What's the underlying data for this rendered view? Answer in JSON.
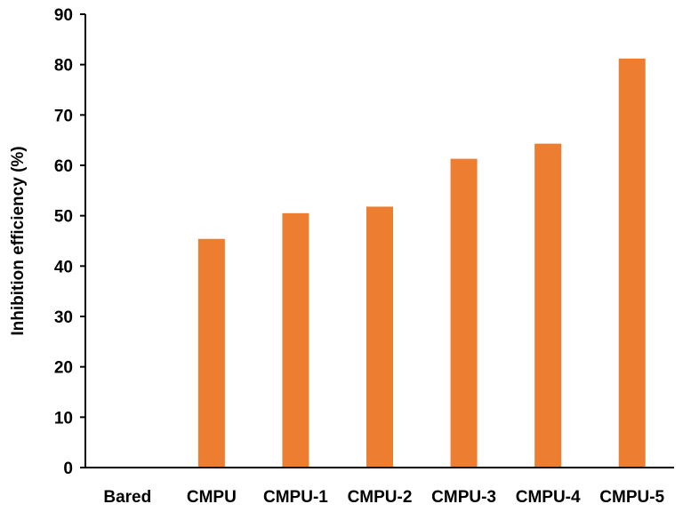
{
  "chart_data": {
    "type": "bar",
    "title": "",
    "xlabel": "",
    "ylabel": "Inhibition efficiency (%)",
    "categories": [
      "Bared",
      "CMPU",
      "CMPU-1",
      "CMPU-2",
      "CMPU-3",
      "CMPU-4",
      "CMPU-5"
    ],
    "values": [
      0,
      45.4,
      50.5,
      51.8,
      61.3,
      64.3,
      81.2
    ],
    "ylim": [
      0,
      90
    ],
    "yticks": [
      0,
      10,
      20,
      30,
      40,
      50,
      60,
      70,
      80,
      90
    ],
    "grid": false,
    "legend": "none",
    "bar_color": "#ED7D31"
  }
}
